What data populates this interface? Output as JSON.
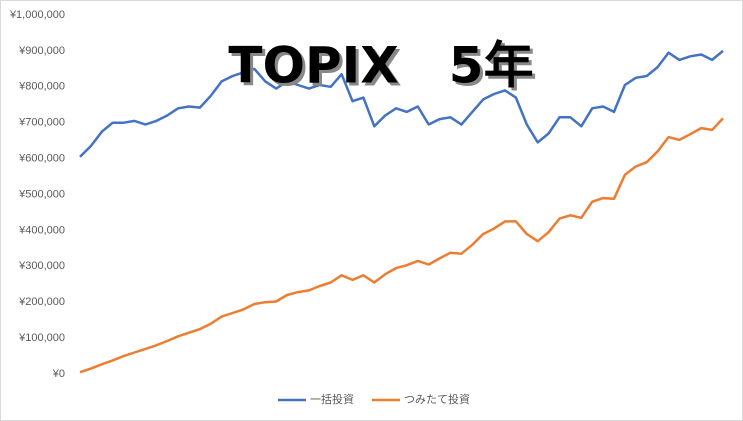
{
  "chart_data": {
    "type": "line",
    "title": "TOPIX　5年",
    "categories": [
      null,
      null,
      null,
      null,
      null,
      null,
      null,
      null,
      null,
      null,
      null,
      null,
      null,
      null,
      null,
      null,
      null,
      null,
      null,
      null,
      null,
      null,
      null,
      null,
      null,
      null,
      null,
      null,
      null,
      null,
      null,
      null,
      null,
      null,
      null,
      null,
      null,
      null,
      null,
      null,
      null,
      null,
      null,
      null,
      null,
      null,
      null,
      null,
      null,
      null,
      null,
      null,
      null,
      null,
      null,
      null,
      null,
      null,
      null,
      null
    ],
    "series": [
      {
        "name": "一括投資",
        "color": "#4472c4",
        "values": [
          605000,
          635000,
          675000,
          700000,
          700000,
          705000,
          695000,
          705000,
          720000,
          740000,
          745000,
          742000,
          775000,
          815000,
          830000,
          840000,
          850000,
          815000,
          795000,
          815000,
          805000,
          795000,
          805000,
          800000,
          835000,
          760000,
          770000,
          690000,
          720000,
          740000,
          730000,
          745000,
          695000,
          710000,
          715000,
          695000,
          730000,
          765000,
          780000,
          790000,
          770000,
          695000,
          645000,
          670000,
          715000,
          715000,
          690000,
          740000,
          745000,
          730000,
          805000,
          825000,
          830000,
          855000,
          895000,
          875000,
          885000,
          890000,
          875000,
          900000
        ]
      },
      {
        "name": "つみたて投資",
        "color": "#ed7d31",
        "values": [
          5000,
          15000,
          27000,
          38000,
          50000,
          60000,
          70000,
          80000,
          92000,
          105000,
          115000,
          125000,
          140000,
          160000,
          170000,
          180000,
          195000,
          200000,
          202000,
          220000,
          228000,
          233000,
          245000,
          255000,
          275000,
          262000,
          275000,
          255000,
          278000,
          295000,
          303000,
          315000,
          305000,
          322000,
          338000,
          335000,
          360000,
          390000,
          405000,
          425000,
          425000,
          390000,
          370000,
          395000,
          433000,
          442000,
          435000,
          480000,
          490000,
          488000,
          555000,
          578000,
          590000,
          620000,
          660000,
          652000,
          668000,
          685000,
          680000,
          712000
        ]
      }
    ],
    "ylim": [
      0,
      1000000
    ],
    "yticks": [
      {
        "value": 0,
        "label": "¥0"
      },
      {
        "value": 100000,
        "label": "¥100,000"
      },
      {
        "value": 200000,
        "label": "¥200,000"
      },
      {
        "value": 300000,
        "label": "¥300,000"
      },
      {
        "value": 400000,
        "label": "¥400,000"
      },
      {
        "value": 500000,
        "label": "¥500,000"
      },
      {
        "value": 600000,
        "label": "¥600,000"
      },
      {
        "value": 700000,
        "label": "¥700,000"
      },
      {
        "value": 800000,
        "label": "¥800,000"
      },
      {
        "value": 900000,
        "label": "¥900,000"
      },
      {
        "value": 1000000,
        "label": "¥1,000,000"
      }
    ],
    "grid": false,
    "legend": "bottom"
  }
}
